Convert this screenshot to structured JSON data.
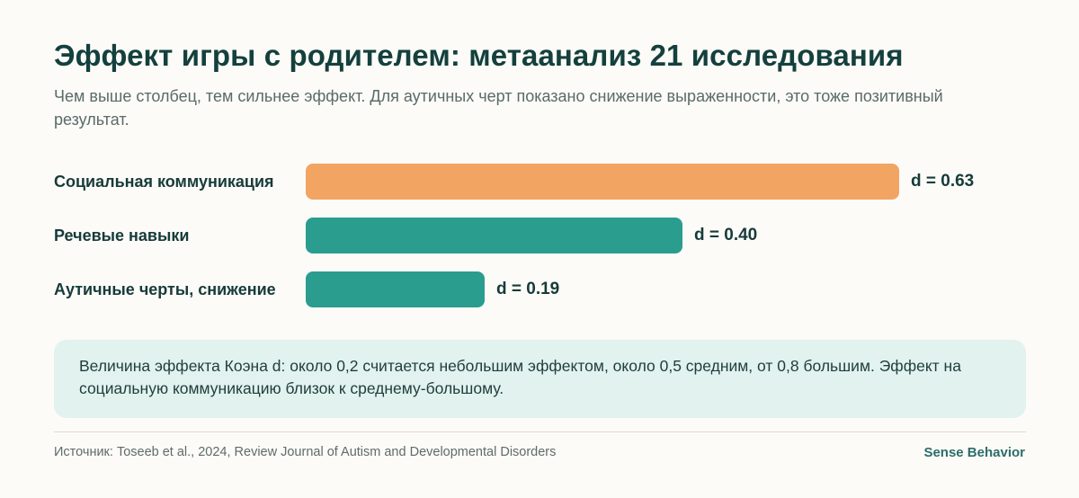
{
  "title": "Эффект игры с родителем: метаанализ 21 исследования",
  "subtitle": "Чем выше столбец, тем сильнее эффект. Для аутичных черт показано снижение выраженности, это тоже позитивный результат.",
  "chart_data": {
    "type": "bar",
    "orientation": "horizontal",
    "categories": [
      "Социальная коммуникация",
      "Речевые навыки",
      "Аутичные черты, снижение"
    ],
    "values": [
      0.63,
      0.4,
      0.19
    ],
    "value_labels": [
      "d = 0.63",
      "d = 0.40",
      "d = 0.19"
    ],
    "colors": [
      "#f2a463",
      "#2a9d8f",
      "#2a9d8f"
    ],
    "xlim": [
      0,
      0.75
    ],
    "grid": false,
    "legend": "none"
  },
  "note": "Величина эффекта Коэна d: около 0,2 считается небольшим эффектом, около 0,5 средним, от 0,8 большим. Эффект на социальную коммуникацию близок к среднему-большому.",
  "footer": {
    "source": "Источник: Toseeb et al., 2024, Review Journal of Autism and Developmental Disorders",
    "brand": "Sense Behavior"
  }
}
